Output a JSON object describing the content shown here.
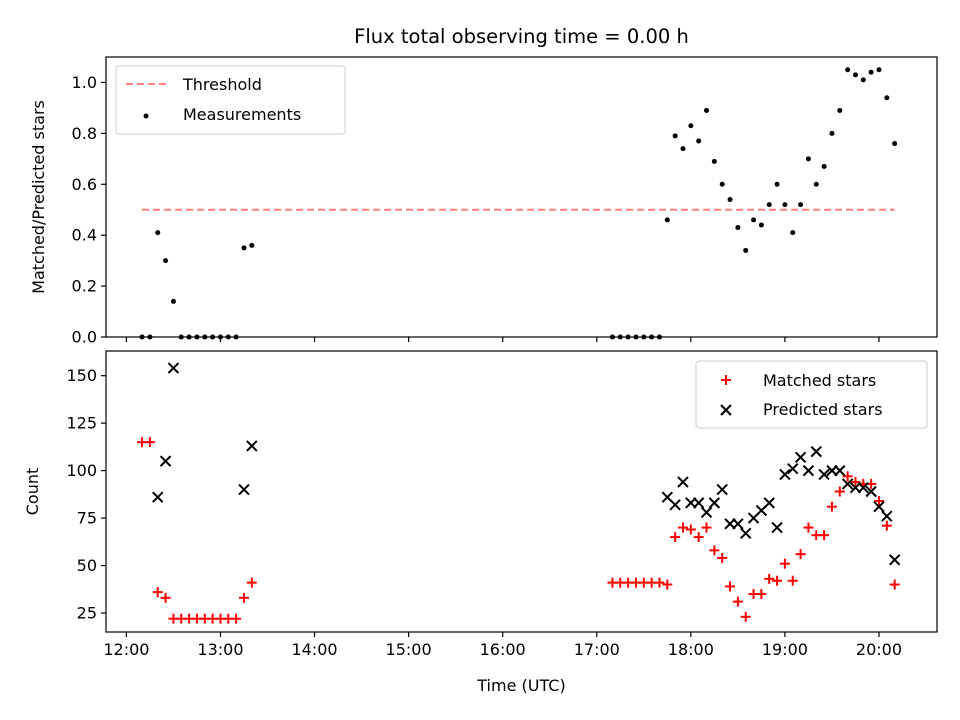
{
  "chart_data": [
    {
      "type": "scatter",
      "title": "Flux total observing time = 0.00 h",
      "xlabel": "",
      "ylabel": "Matched/Predicted stars",
      "xlim": [
        "11:47",
        "20:37"
      ],
      "ylim": [
        0,
        1.1
      ],
      "yticks": [
        "0.0",
        "0.2",
        "0.4",
        "0.6",
        "0.8",
        "1.0"
      ],
      "grid": false,
      "legend": "top-left",
      "threshold": {
        "name": "Threshold",
        "color": "#ff7f7f",
        "value": 0.5,
        "x_range": [
          "12:10",
          "20:10"
        ]
      },
      "series": [
        {
          "name": "Measurements",
          "marker": "dot",
          "color": "#000000",
          "points": [
            [
              "12:10",
              0.0
            ],
            [
              "12:15",
              0.0
            ],
            [
              "12:20",
              0.41
            ],
            [
              "12:25",
              0.3
            ],
            [
              "12:30",
              0.14
            ],
            [
              "12:35",
              0.0
            ],
            [
              "12:40",
              0.0
            ],
            [
              "12:45",
              0.0
            ],
            [
              "12:50",
              0.0
            ],
            [
              "12:55",
              0.0
            ],
            [
              "13:00",
              0.0
            ],
            [
              "13:05",
              0.0
            ],
            [
              "13:10",
              0.0
            ],
            [
              "13:15",
              0.35
            ],
            [
              "13:20",
              0.36
            ],
            [
              "17:10",
              0.0
            ],
            [
              "17:15",
              0.0
            ],
            [
              "17:20",
              0.0
            ],
            [
              "17:25",
              0.0
            ],
            [
              "17:30",
              0.0
            ],
            [
              "17:35",
              0.0
            ],
            [
              "17:40",
              0.0
            ],
            [
              "17:45",
              0.46
            ],
            [
              "17:50",
              0.79
            ],
            [
              "17:55",
              0.74
            ],
            [
              "18:00",
              0.83
            ],
            [
              "18:05",
              0.77
            ],
            [
              "18:10",
              0.89
            ],
            [
              "18:15",
              0.69
            ],
            [
              "18:20",
              0.6
            ],
            [
              "18:25",
              0.54
            ],
            [
              "18:30",
              0.43
            ],
            [
              "18:35",
              0.34
            ],
            [
              "18:40",
              0.46
            ],
            [
              "18:45",
              0.44
            ],
            [
              "18:50",
              0.52
            ],
            [
              "18:55",
              0.6
            ],
            [
              "19:00",
              0.52
            ],
            [
              "19:05",
              0.41
            ],
            [
              "19:10",
              0.52
            ],
            [
              "19:15",
              0.7
            ],
            [
              "19:20",
              0.6
            ],
            [
              "19:25",
              0.67
            ],
            [
              "19:30",
              0.8
            ],
            [
              "19:35",
              0.89
            ],
            [
              "19:40",
              1.05
            ],
            [
              "19:45",
              1.03
            ],
            [
              "19:50",
              1.01
            ],
            [
              "19:55",
              1.04
            ],
            [
              "20:00",
              1.05
            ],
            [
              "20:05",
              0.94
            ],
            [
              "20:10",
              0.76
            ]
          ]
        }
      ]
    },
    {
      "type": "scatter",
      "title": "",
      "xlabel": "Time (UTC)",
      "ylabel": "Count",
      "xlim": [
        "11:47",
        "20:37"
      ],
      "ylim": [
        15,
        163
      ],
      "xticks": [
        "12:00",
        "13:00",
        "14:00",
        "15:00",
        "16:00",
        "17:00",
        "18:00",
        "19:00",
        "20:00"
      ],
      "yticks": [
        "25",
        "50",
        "75",
        "100",
        "125",
        "150"
      ],
      "grid": false,
      "legend": "top-right",
      "series": [
        {
          "name": "Matched stars",
          "marker": "plus",
          "color": "#ff0000",
          "points": [
            [
              "12:10",
              115
            ],
            [
              "12:15",
              115
            ],
            [
              "12:20",
              36
            ],
            [
              "12:25",
              33
            ],
            [
              "12:30",
              22
            ],
            [
              "12:35",
              22
            ],
            [
              "12:40",
              22
            ],
            [
              "12:45",
              22
            ],
            [
              "12:50",
              22
            ],
            [
              "12:55",
              22
            ],
            [
              "13:00",
              22
            ],
            [
              "13:05",
              22
            ],
            [
              "13:10",
              22
            ],
            [
              "13:15",
              33
            ],
            [
              "13:20",
              41
            ],
            [
              "17:10",
              41
            ],
            [
              "17:15",
              41
            ],
            [
              "17:20",
              41
            ],
            [
              "17:25",
              41
            ],
            [
              "17:30",
              41
            ],
            [
              "17:35",
              41
            ],
            [
              "17:40",
              41
            ],
            [
              "17:45",
              40
            ],
            [
              "17:50",
              65
            ],
            [
              "17:55",
              70
            ],
            [
              "18:00",
              69
            ],
            [
              "18:05",
              65
            ],
            [
              "18:10",
              70
            ],
            [
              "18:15",
              58
            ],
            [
              "18:20",
              54
            ],
            [
              "18:25",
              39
            ],
            [
              "18:30",
              31
            ],
            [
              "18:35",
              23
            ],
            [
              "18:40",
              35
            ],
            [
              "18:45",
              35
            ],
            [
              "18:50",
              43
            ],
            [
              "18:55",
              42
            ],
            [
              "19:00",
              51
            ],
            [
              "19:05",
              42
            ],
            [
              "19:10",
              56
            ],
            [
              "19:15",
              70
            ],
            [
              "19:20",
              66
            ],
            [
              "19:25",
              66
            ],
            [
              "19:30",
              81
            ],
            [
              "19:35",
              89
            ],
            [
              "19:40",
              97
            ],
            [
              "19:45",
              94
            ],
            [
              "19:50",
              93
            ],
            [
              "19:55",
              93
            ],
            [
              "20:00",
              84
            ],
            [
              "20:05",
              71
            ],
            [
              "20:10",
              40
            ]
          ]
        },
        {
          "name": "Predicted stars",
          "marker": "x",
          "color": "#000000",
          "points": [
            [
              "12:20",
              86
            ],
            [
              "12:25",
              105
            ],
            [
              "12:30",
              154
            ],
            [
              "13:15",
              90
            ],
            [
              "13:20",
              113
            ],
            [
              "17:45",
              86
            ],
            [
              "17:50",
              82
            ],
            [
              "17:55",
              94
            ],
            [
              "18:00",
              83
            ],
            [
              "18:05",
              83
            ],
            [
              "18:10",
              78
            ],
            [
              "18:15",
              83
            ],
            [
              "18:20",
              90
            ],
            [
              "18:25",
              72
            ],
            [
              "18:30",
              72
            ],
            [
              "18:35",
              67
            ],
            [
              "18:40",
              75
            ],
            [
              "18:45",
              79
            ],
            [
              "18:50",
              83
            ],
            [
              "18:55",
              70
            ],
            [
              "19:00",
              98
            ],
            [
              "19:05",
              101
            ],
            [
              "19:10",
              107
            ],
            [
              "19:15",
              100
            ],
            [
              "19:20",
              110
            ],
            [
              "19:25",
              98
            ],
            [
              "19:30",
              100
            ],
            [
              "19:35",
              100
            ],
            [
              "19:40",
              93
            ],
            [
              "19:45",
              91
            ],
            [
              "19:50",
              91
            ],
            [
              "19:55",
              89
            ],
            [
              "20:00",
              81
            ],
            [
              "20:05",
              76
            ],
            [
              "20:10",
              53
            ]
          ]
        }
      ]
    }
  ]
}
